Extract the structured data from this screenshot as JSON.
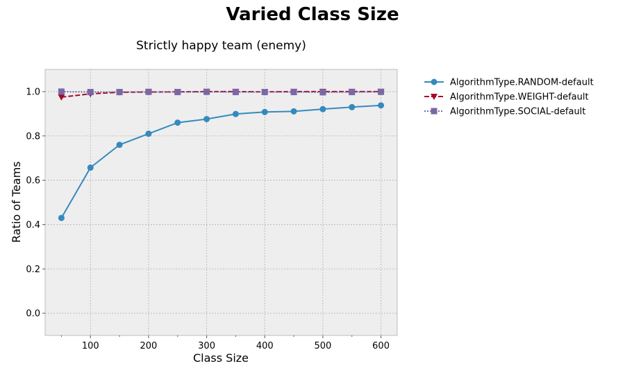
{
  "chart_data": {
    "type": "line",
    "suptitle": "Varied Class Size",
    "title": "Strictly happy team (enemy)",
    "xlabel": "Class Size",
    "ylabel": "Ratio of Teams",
    "xlim": [
      22,
      628
    ],
    "ylim": [
      -0.1,
      1.1
    ],
    "xticks": [
      100,
      200,
      300,
      400,
      500,
      600
    ],
    "xminor": [
      50,
      150,
      250,
      350,
      450,
      550
    ],
    "yticks": [
      0.0,
      0.2,
      0.4,
      0.6,
      0.8,
      1.0
    ],
    "xtick_labels": [
      "100",
      "200",
      "300",
      "400",
      "500",
      "600"
    ],
    "ytick_labels": [
      "0.0",
      "0.2",
      "0.4",
      "0.6",
      "0.8",
      "1.0"
    ],
    "grid": true,
    "legend_position": "outside-right",
    "x": [
      50,
      100,
      150,
      200,
      250,
      300,
      350,
      400,
      450,
      500,
      550,
      600
    ],
    "series": [
      {
        "name": "AlgorithmType.RANDOM-default",
        "values": [
          0.43,
          0.657,
          0.76,
          0.81,
          0.86,
          0.876,
          0.899,
          0.908,
          0.911,
          0.921,
          0.93,
          0.938
        ],
        "color": "#348abd",
        "dash": "solid",
        "marker": "circle"
      },
      {
        "name": "AlgorithmType.WEIGHT-default",
        "values": [
          0.975,
          0.99,
          0.997,
          0.998,
          0.999,
          1.0,
          1.0,
          0.999,
          1.0,
          1.0,
          1.0,
          1.0
        ],
        "color": "#a60628",
        "dash": "dashed",
        "marker": "triangle-down"
      },
      {
        "name": "AlgorithmType.SOCIAL-default",
        "values": [
          1.0,
          0.998,
          0.998,
          0.999,
          0.998,
          0.999,
          0.998,
          0.998,
          0.998,
          0.997,
          0.998,
          0.999
        ],
        "color": "#7a68a6",
        "dash": "dotted",
        "marker": "square"
      }
    ]
  }
}
